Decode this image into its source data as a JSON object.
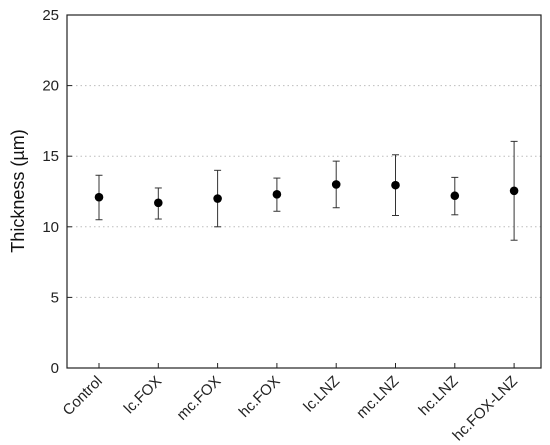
{
  "chart_data": {
    "type": "scatter",
    "title": "",
    "xlabel": "",
    "ylabel": "Thickness (µm)",
    "ylim": [
      0,
      25
    ],
    "yticks": [
      0,
      5,
      10,
      15,
      20,
      25
    ],
    "grid": "horizontal dotted",
    "categories": [
      "Control",
      "lc.FOX",
      "mc.FOX",
      "hc.FOX",
      "lc.LNZ",
      "mc.LNZ",
      "hc.LNZ",
      "hc.FOX-LNZ"
    ],
    "series": [
      {
        "values": [
          12.1,
          11.7,
          12.0,
          12.3,
          13.0,
          12.95,
          12.2,
          12.55
        ],
        "error_low": [
          10.5,
          10.55,
          10.0,
          11.1,
          11.35,
          10.8,
          10.85,
          9.05
        ],
        "error_high": [
          13.65,
          12.75,
          14.0,
          13.45,
          14.65,
          15.1,
          13.5,
          16.05
        ]
      }
    ]
  }
}
